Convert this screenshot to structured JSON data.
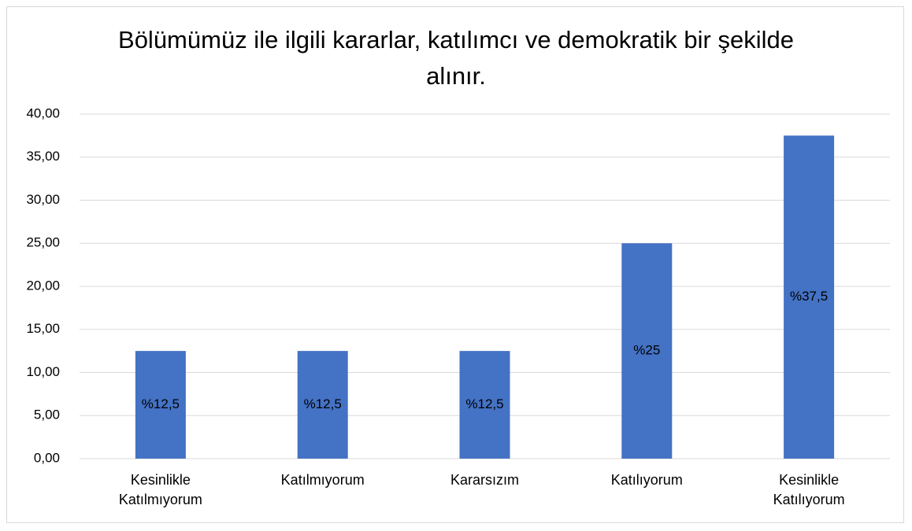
{
  "chart_data": {
    "type": "bar",
    "title": "Bölümümüz ile ilgili kararlar, katılımcı ve demokratik bir şekilde alınır.",
    "categories": [
      "Kesinlikle Katılmıyorum",
      "Katılmıyorum",
      "Kararsızım",
      "Katılıyorum",
      "Kesinlikle Katılıyorum"
    ],
    "values": [
      12.5,
      12.5,
      12.5,
      25,
      37.5
    ],
    "value_labels": [
      "%12,5",
      "%12,5",
      "%12,5",
      "%25",
      "%37,5"
    ],
    "color": "#4472c4",
    "ylim": [
      0,
      40
    ],
    "yticks": [
      {
        "value": 0,
        "label": "0,00"
      },
      {
        "value": 5,
        "label": "5,00"
      },
      {
        "value": 10,
        "label": "10,00"
      },
      {
        "value": 15,
        "label": "15,00"
      },
      {
        "value": 20,
        "label": "20,00"
      },
      {
        "value": 25,
        "label": "25,00"
      },
      {
        "value": 30,
        "label": "30,00"
      },
      {
        "value": 35,
        "label": "35,00"
      },
      {
        "value": 40,
        "label": "40,00"
      }
    ],
    "grid": true
  }
}
